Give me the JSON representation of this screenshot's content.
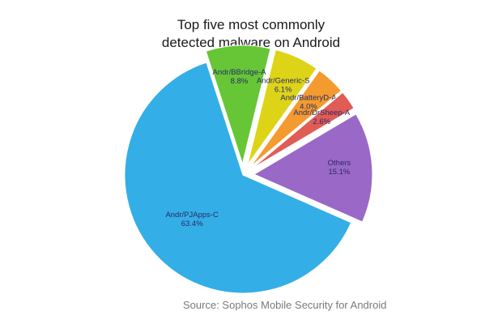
{
  "chart_data": {
    "type": "pie",
    "title_lines": [
      "Top five most commonly",
      "detected malware on Android"
    ],
    "source": "Source: Sophos Mobile Security for Android",
    "slices": [
      {
        "label": "Andr/BBridge-A",
        "value": 8.8,
        "value_label": "8.8%",
        "color": "#66c636",
        "exploded": true
      },
      {
        "label": "Andr/Generic-S",
        "value": 6.1,
        "value_label": "6.1%",
        "color": "#ddd418",
        "exploded": true
      },
      {
        "label": "Andr/BatteryD-A",
        "value": 4.0,
        "value_label": "4.0%",
        "color": "#f39b2f",
        "exploded": true
      },
      {
        "label": "Andr/DrSheep-A",
        "value": 2.6,
        "value_label": "2.6%",
        "color": "#e05c55",
        "exploded": true
      },
      {
        "label": "Others",
        "value": 15.1,
        "value_label": "15.1%",
        "color": "#9a68c6",
        "exploded": true
      },
      {
        "label": "Andr/PJApps-C",
        "value": 63.4,
        "value_label": "63.4%",
        "color": "#34aee6",
        "exploded": false
      }
    ]
  }
}
